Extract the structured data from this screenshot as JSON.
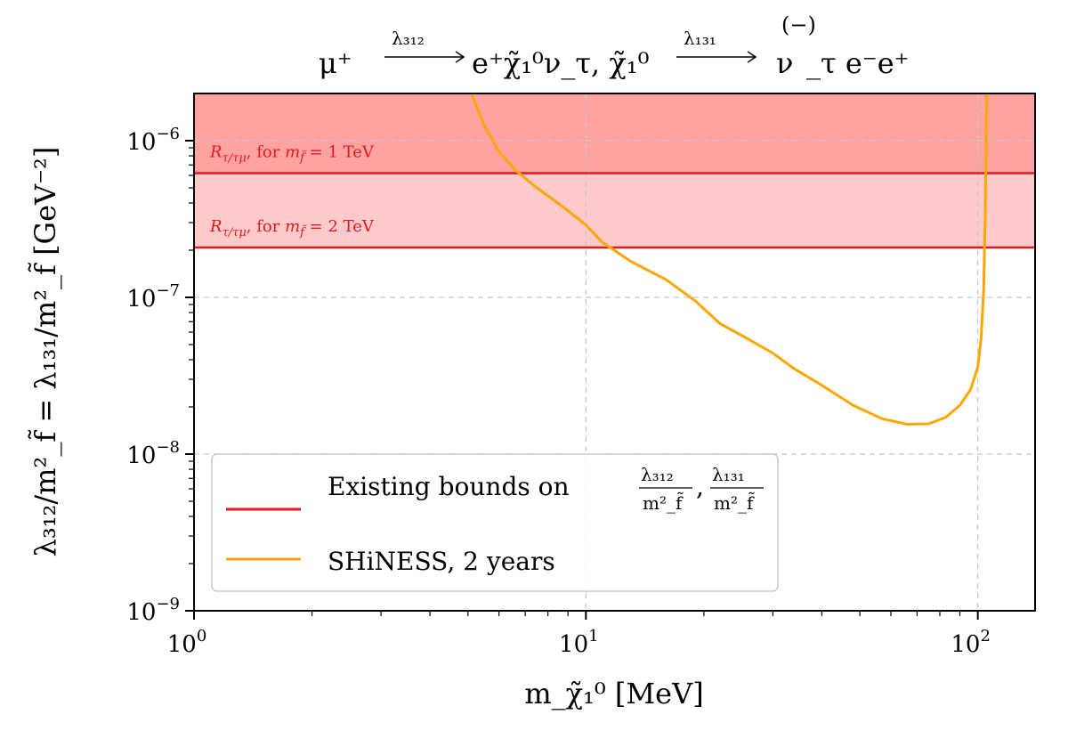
{
  "chart_data": {
    "type": "line",
    "title": "μ⁺ →(λ₃₁₂) e⁺χ̃₁⁰ν_τ, χ̃₁⁰ →(λ₁₃₁) (−)ν_τ e⁻e⁺",
    "title_parts": {
      "lhs": "μ⁺",
      "arrow1_label": "λ₃₁₂",
      "mid": "e⁺χ̃₁⁰ν_τ, χ̃₁⁰",
      "arrow2_label": "λ₁₃₁",
      "bar": "(−)",
      "rhs_nu": "ν",
      "rhs": "_τ e⁻e⁺"
    },
    "xlabel": "m_χ̃₁⁰ [MeV]",
    "ylabel": "λ₃₁₂/m²_f̃ = λ₁₃₁/m²_f̃ [GeV⁻²]",
    "xscale": "log",
    "yscale": "log",
    "xlim": [
      1,
      140
    ],
    "ylim": [
      1e-09,
      2e-06
    ],
    "grid": true,
    "x_ticks": [
      {
        "value": 1,
        "base": "10",
        "exp": "0"
      },
      {
        "value": 10,
        "base": "10",
        "exp": "1"
      },
      {
        "value": 100,
        "base": "10",
        "exp": "2"
      }
    ],
    "y_ticks": [
      {
        "value": 1e-09,
        "base": "10",
        "exp": "−9"
      },
      {
        "value": 1e-08,
        "base": "10",
        "exp": "−8"
      },
      {
        "value": 1e-07,
        "base": "10",
        "exp": "−7"
      },
      {
        "value": 1e-06,
        "base": "10",
        "exp": "−6"
      }
    ],
    "bounds": [
      {
        "label": "R_τ/τμ, for m_f̃ = 1 TeV",
        "label_lhs": "R",
        "label_sub": "τ/τμ",
        "label_mid": ", for ",
        "label_m": "m",
        "label_msub": "f̃",
        "label_rhs": " = 1 TeV",
        "y": 6.2e-07,
        "fill_color": "#ffa2a2"
      },
      {
        "label": "R_τ/τμ, for m_f̃ = 2 TeV",
        "label_lhs": "R",
        "label_sub": "τ/τμ",
        "label_mid": ", for ",
        "label_m": "m",
        "label_msub": "f̃",
        "label_rhs": " = 2 TeV",
        "y": 2.08e-07,
        "fill_color": "#ffcaca"
      }
    ],
    "bound_color": "#e31a1c",
    "series": [
      {
        "name": "SHiNESS, 2 years",
        "color": "#ffa500",
        "x": [
          5.1,
          5.5,
          6.0,
          6.6,
          7.5,
          8.6,
          10.0,
          11.0,
          13.0,
          16.0,
          19.0,
          22.0,
          26.0,
          30.0,
          34.0,
          40.0,
          48.0,
          57.0,
          66.0,
          75.0,
          83.0,
          90.0,
          96.0,
          100.0,
          102.0,
          103.5,
          104.5,
          105.0,
          105.5
        ],
        "y": [
          2e-06,
          1.25e-06,
          8.5e-07,
          6.5e-07,
          5e-07,
          3.9e-07,
          2.9e-07,
          2.25e-07,
          1.7e-07,
          1.3e-07,
          9.5e-08,
          6.8e-08,
          5.4e-08,
          4.4e-08,
          3.5e-08,
          2.75e-08,
          2.05e-08,
          1.68e-08,
          1.55e-08,
          1.56e-08,
          1.72e-08,
          2.05e-08,
          2.6e-08,
          3.6e-08,
          5.5e-08,
          1.1e-07,
          3.5e-07,
          1e-06,
          2e-06
        ]
      }
    ],
    "legend": {
      "position": "lower-left",
      "entries": [
        {
          "text": "Existing bounds on ",
          "frac1_num": "λ₃₁₂",
          "frac_den": "m²_f̃",
          "frac2_num": "λ₁₃₁",
          "color": "#e31a1c"
        },
        {
          "text": "SHiNESS, 2 years",
          "color": "#ffa500"
        }
      ]
    }
  }
}
